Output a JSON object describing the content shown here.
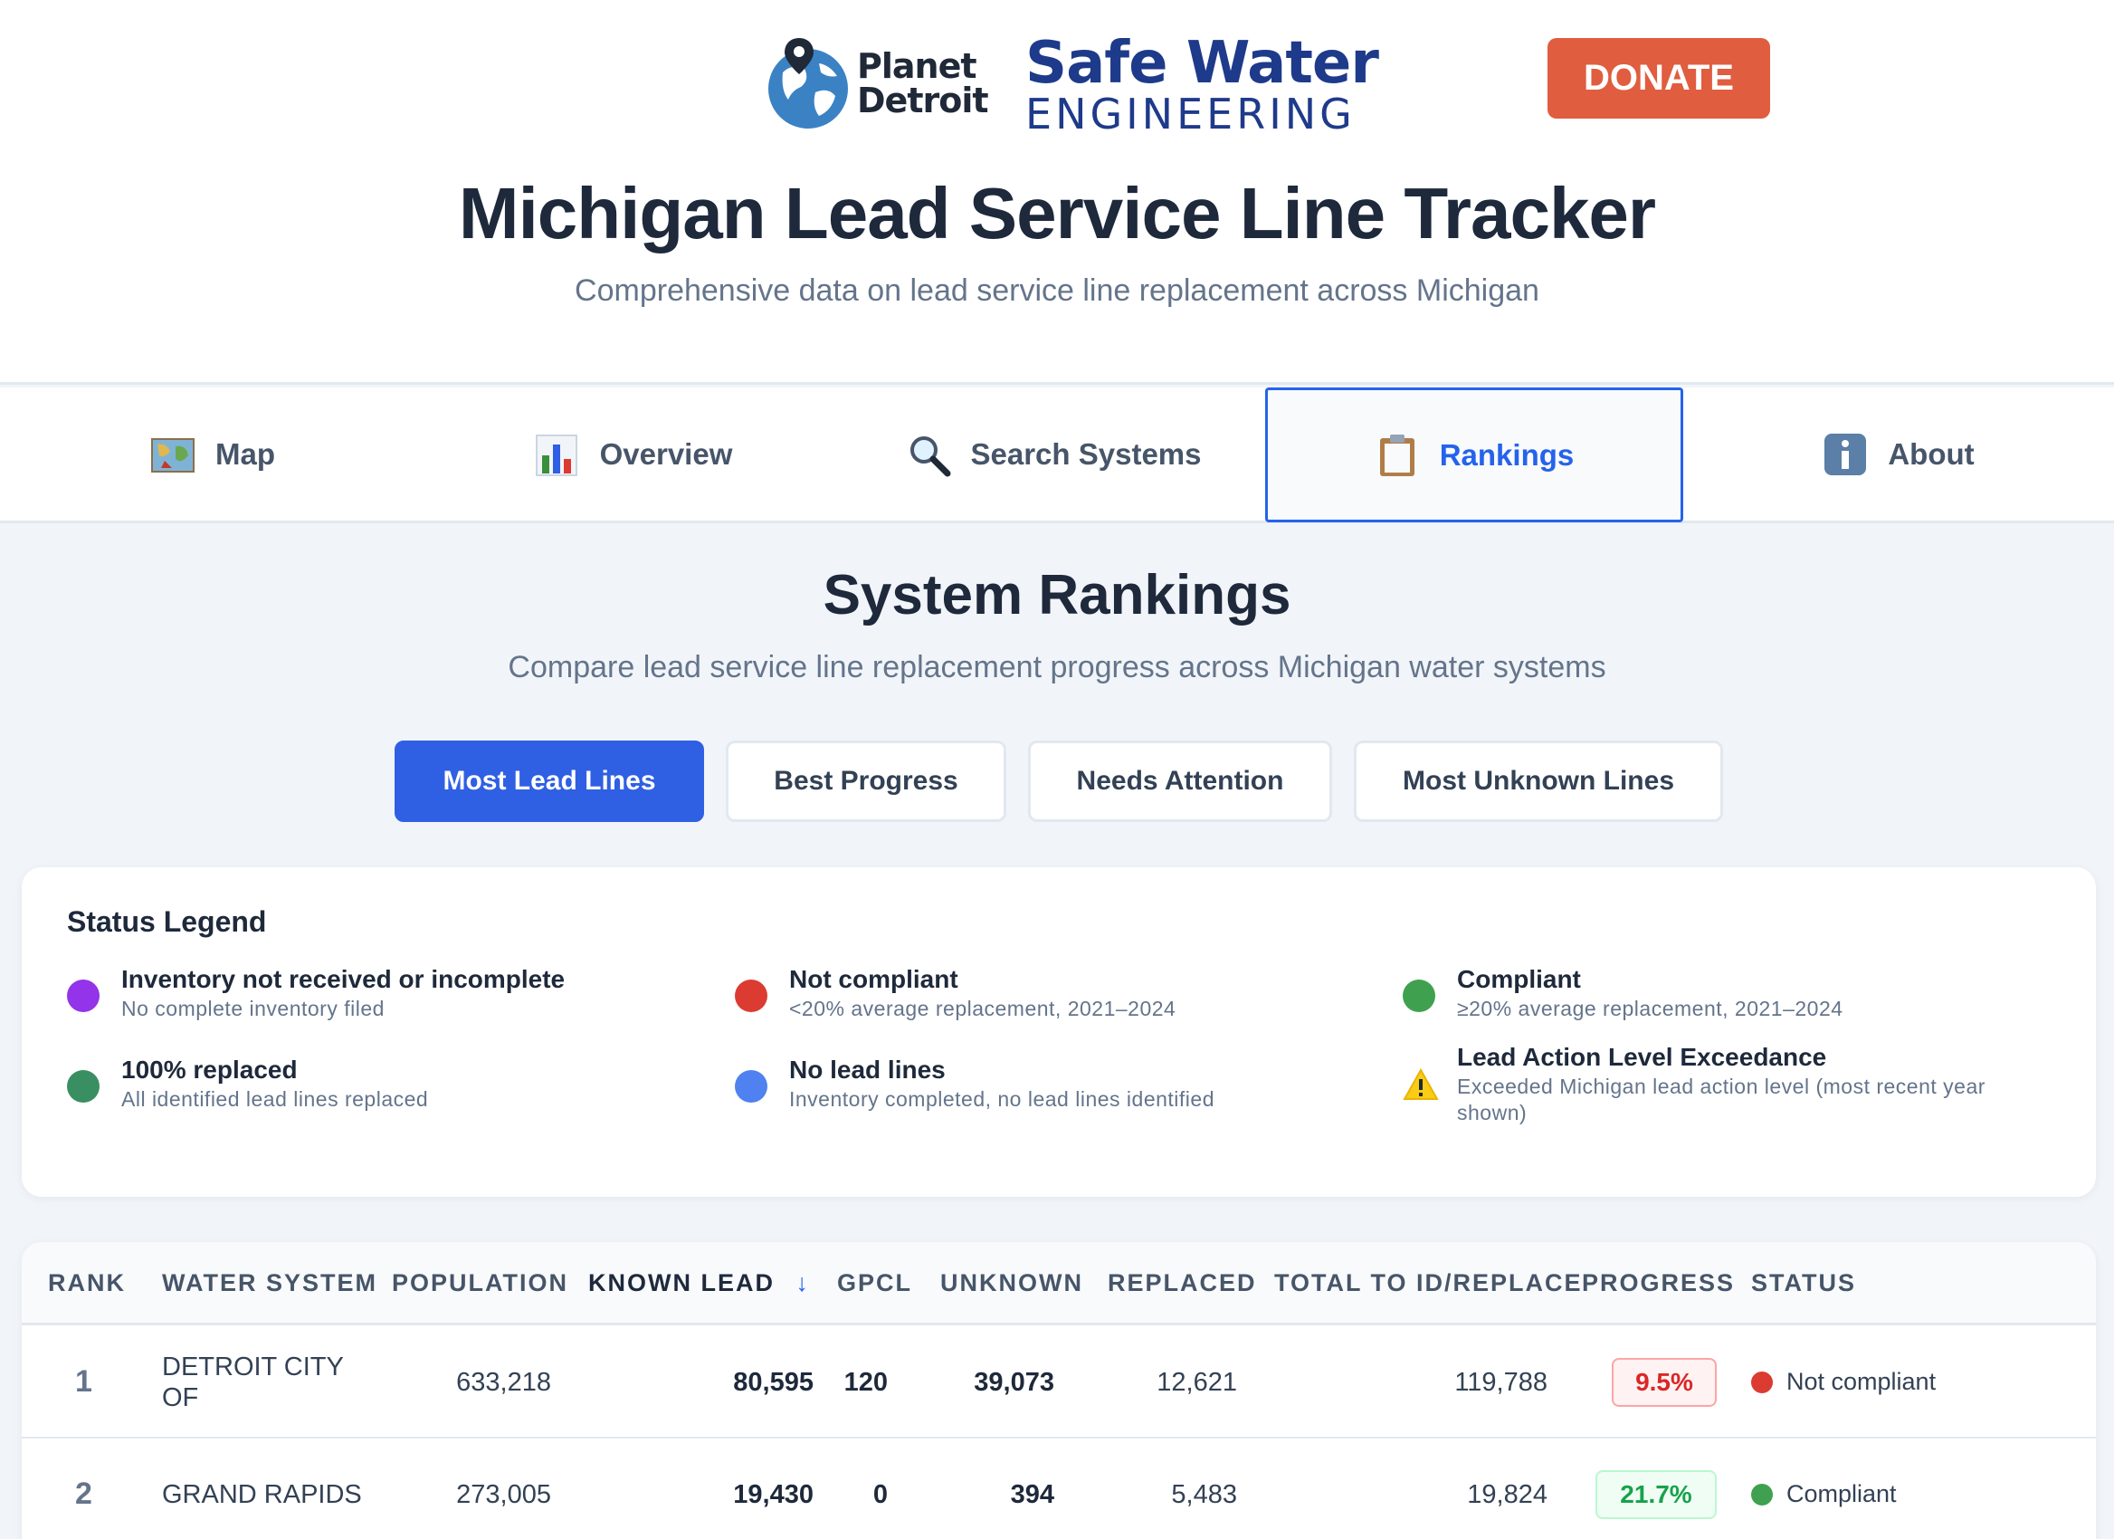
{
  "header": {
    "planet_detroit_line1": "Planet",
    "planet_detroit_line2": "Detroit",
    "safe_water_line1": "Safe Water",
    "safe_water_line2": "ENGINEERING",
    "donate_label": "DONATE",
    "title": "Michigan Lead Service Line Tracker",
    "subtitle": "Comprehensive data on lead service line replacement across Michigan"
  },
  "nav": {
    "tabs": [
      {
        "label": "Map",
        "icon": "map-icon"
      },
      {
        "label": "Overview",
        "icon": "bar-chart-icon"
      },
      {
        "label": "Search Systems",
        "icon": "magnifier-icon"
      },
      {
        "label": "Rankings",
        "icon": "clipboard-icon",
        "active": true
      },
      {
        "label": "About",
        "icon": "info-icon"
      }
    ]
  },
  "rankings": {
    "title": "System Rankings",
    "subtitle": "Compare lead service line replacement progress across Michigan water systems",
    "filters": [
      {
        "label": "Most Lead Lines",
        "active": true
      },
      {
        "label": "Best Progress"
      },
      {
        "label": "Needs Attention"
      },
      {
        "label": "Most Unknown Lines"
      }
    ]
  },
  "legend": {
    "title": "Status Legend",
    "items": [
      {
        "name": "Inventory not received or incomplete",
        "desc": "No complete inventory filed",
        "color": "#9333ea"
      },
      {
        "name": "Not compliant",
        "desc": "<20% average replacement, 2021–2024",
        "color": "#dc3b32"
      },
      {
        "name": "Compliant",
        "desc": "≥20% average replacement, 2021–2024",
        "color": "#3fa14f"
      },
      {
        "name": "100% replaced",
        "desc": "All identified lead lines replaced",
        "color": "#3a8f62"
      },
      {
        "name": "No lead lines",
        "desc": "Inventory completed, no lead lines identified",
        "color": "#4f82f0"
      },
      {
        "name": "Lead Action Level Exceedance",
        "desc": "Exceeded Michigan lead action level (most recent year shown)",
        "icon": "warning-icon"
      }
    ]
  },
  "table": {
    "columns": [
      "RANK",
      "WATER SYSTEM",
      "POPULATION",
      "KNOWN LEAD",
      "GPCL",
      "UNKNOWN",
      "REPLACED",
      "TOTAL TO ID/REPLACE",
      "PROGRESS",
      "STATUS"
    ],
    "sort_indicator": "↓",
    "rows": [
      {
        "rank": "1",
        "system_line1": "DETROIT CITY",
        "system_line2": "OF",
        "population": "633,218",
        "known_lead": "80,595",
        "gpcl": "120",
        "unknown": "39,073",
        "replaced": "12,621",
        "total": "119,788",
        "progress": "9.5%",
        "status": "Not compliant",
        "status_color": "#dc3b32"
      },
      {
        "rank": "2",
        "system_line1": "GRAND RAPIDS",
        "system_line2": "",
        "population": "273,005",
        "known_lead": "19,430",
        "gpcl": "0",
        "unknown": "394",
        "replaced": "5,483",
        "total": "19,824",
        "progress": "21.7%",
        "status": "Compliant",
        "status_color": "#3fa14f"
      }
    ]
  }
}
